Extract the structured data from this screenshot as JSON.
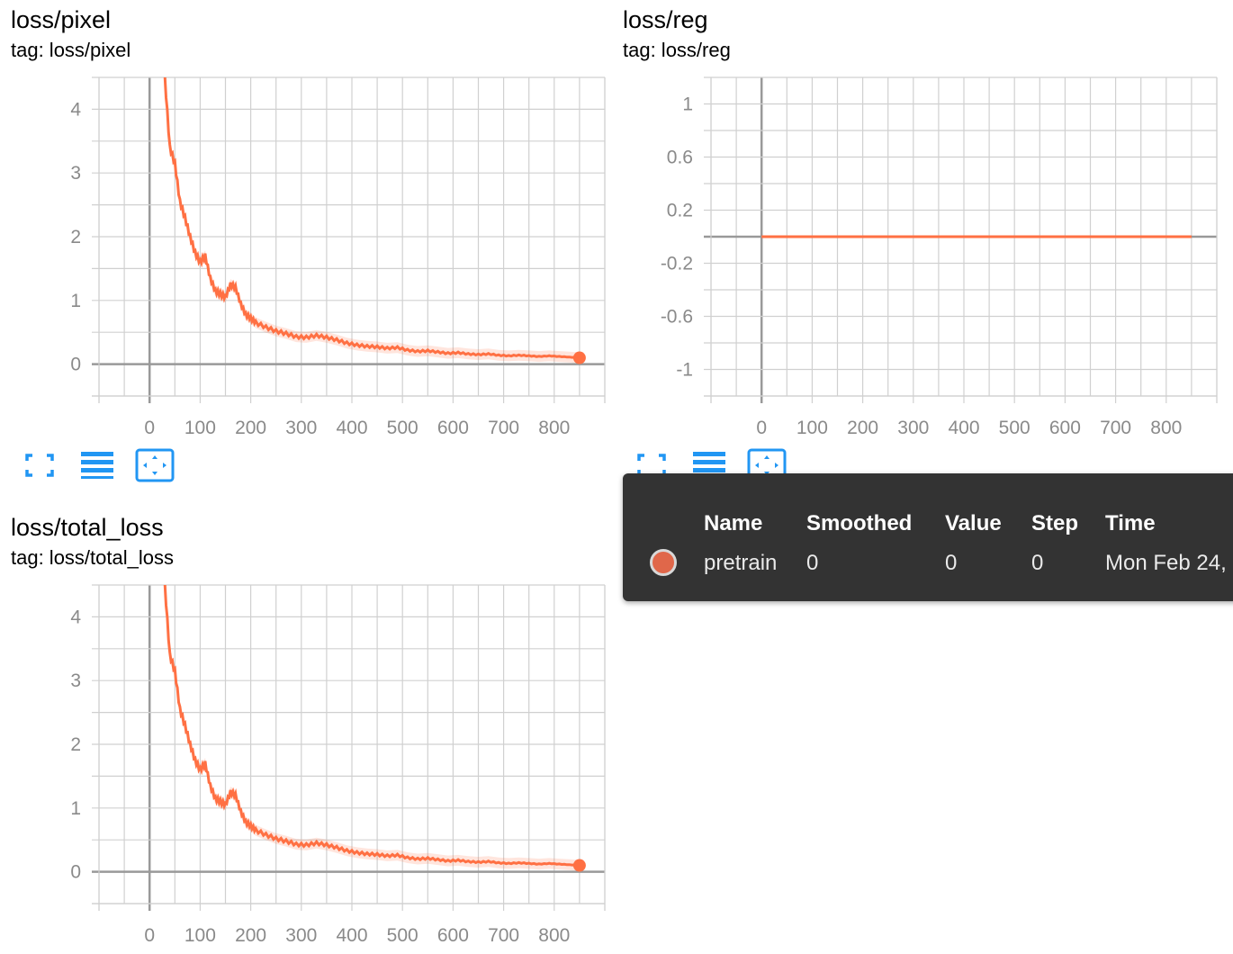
{
  "cards": [
    {
      "title": "loss/pixel",
      "tag": "tag: loss/pixel",
      "chart_data": {
        "type": "line",
        "series": [
          {
            "name": "pretrain",
            "color": "#ff7043",
            "x": [
              30,
              40,
              50,
              60,
              70,
              80,
              90,
              100,
              110,
              120,
              130,
              140,
              150,
              160,
              170,
              180,
              190,
              200,
              210,
              230,
              250,
              270,
              290,
              310,
              330,
              350,
              370,
              390,
              410,
              430,
              450,
              470,
              490,
              510,
              530,
              550,
              570,
              590,
              610,
              630,
              650,
              670,
              690,
              710,
              730,
              750,
              770,
              790,
              810,
              830,
              850
            ],
            "y": [
              4.5,
              3.4,
              3.15,
              2.55,
              2.3,
              2.0,
              1.75,
              1.6,
              1.7,
              1.35,
              1.15,
              1.1,
              1.05,
              1.25,
              1.2,
              0.95,
              0.78,
              0.72,
              0.65,
              0.58,
              0.52,
              0.48,
              0.43,
              0.42,
              0.45,
              0.42,
              0.38,
              0.33,
              0.3,
              0.28,
              0.27,
              0.25,
              0.26,
              0.22,
              0.2,
              0.21,
              0.19,
              0.17,
              0.18,
              0.16,
              0.15,
              0.16,
              0.14,
              0.13,
              0.14,
              0.13,
              0.12,
              0.13,
              0.12,
              0.11,
              0.1
            ]
          }
        ],
        "xticks": [
          "0",
          "100",
          "200",
          "300",
          "400",
          "500",
          "600",
          "700",
          "800"
        ],
        "yticks": [
          "0",
          "1",
          "2",
          "3",
          "4"
        ],
        "xlim": [
          -100,
          900
        ],
        "ylim": [
          -0.5,
          4.5
        ],
        "grid": true
      }
    },
    {
      "title": "loss/reg",
      "tag": "tag: loss/reg",
      "chart_data": {
        "type": "line",
        "series": [
          {
            "name": "pretrain",
            "color": "#ff7043",
            "x": [
              0,
              850
            ],
            "y": [
              0,
              0
            ]
          }
        ],
        "xticks": [
          "0",
          "100",
          "200",
          "300",
          "400",
          "500",
          "600",
          "700",
          "800"
        ],
        "yticks": [
          "-1",
          "-0.6",
          "-0.2",
          "0.2",
          "0.6",
          "1"
        ],
        "xlim": [
          -100,
          900
        ],
        "ylim": [
          -1.2,
          1.2
        ],
        "grid": true
      }
    },
    {
      "title": "loss/total_loss",
      "tag": "tag: loss/total_loss",
      "chart_data": {
        "type": "line",
        "series": [
          {
            "name": "pretrain",
            "color": "#ff7043",
            "x": [
              30,
              40,
              50,
              60,
              70,
              80,
              90,
              100,
              110,
              120,
              130,
              140,
              150,
              160,
              170,
              180,
              190,
              200,
              210,
              230,
              250,
              270,
              290,
              310,
              330,
              350,
              370,
              390,
              410,
              430,
              450,
              470,
              490,
              510,
              530,
              550,
              570,
              590,
              610,
              630,
              650,
              670,
              690,
              710,
              730,
              750,
              770,
              790,
              810,
              830,
              850
            ],
            "y": [
              4.5,
              3.4,
              3.15,
              2.55,
              2.3,
              2.0,
              1.75,
              1.6,
              1.7,
              1.35,
              1.15,
              1.1,
              1.05,
              1.25,
              1.2,
              0.95,
              0.78,
              0.72,
              0.65,
              0.58,
              0.52,
              0.48,
              0.43,
              0.42,
              0.45,
              0.42,
              0.38,
              0.33,
              0.3,
              0.28,
              0.27,
              0.25,
              0.26,
              0.22,
              0.2,
              0.21,
              0.19,
              0.17,
              0.18,
              0.16,
              0.15,
              0.16,
              0.14,
              0.13,
              0.14,
              0.13,
              0.12,
              0.13,
              0.12,
              0.11,
              0.1
            ]
          }
        ],
        "xticks": [
          "0",
          "100",
          "200",
          "300",
          "400",
          "500",
          "600",
          "700",
          "800"
        ],
        "yticks": [
          "0",
          "1",
          "2",
          "3",
          "4"
        ],
        "xlim": [
          -100,
          900
        ],
        "ylim": [
          -0.5,
          4.5
        ],
        "grid": true
      }
    }
  ],
  "toolbar_icons": [
    "fullscreen-icon",
    "toggle-y-log-icon",
    "fit-domain-icon"
  ],
  "tooltip": {
    "headers": {
      "name": "Name",
      "smoothed": "Smoothed",
      "value": "Value",
      "step": "Step",
      "time": "Time"
    },
    "row": {
      "name": "pretrain",
      "smoothed": "0",
      "value": "0",
      "step": "0",
      "time": "Mon Feb 24,",
      "color": "#e0674a"
    }
  },
  "colors": {
    "accent": "#2196f3",
    "line": "#ff7043",
    "grid": "#d0d0d0",
    "axis": "#999999"
  }
}
